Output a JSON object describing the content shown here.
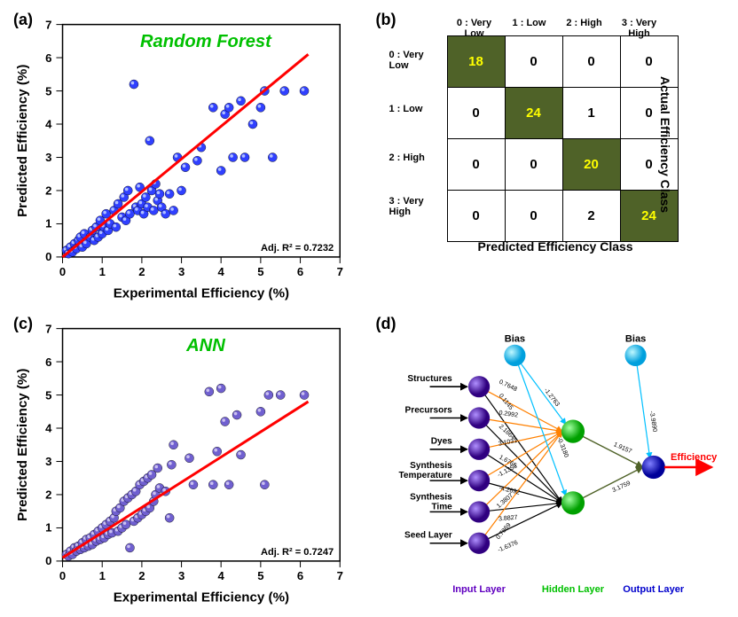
{
  "panel_a": {
    "label": "(a)",
    "title": "Random Forest",
    "title_color": "#00c000",
    "xlabel": "Experimental Efficiency (%)",
    "ylabel": "Predicted Efficiency (%)",
    "r2_label": "Adj. R² = 0.7232",
    "xlim": [
      0,
      7
    ],
    "ylim": [
      0,
      7
    ],
    "ticks": [
      0,
      1,
      2,
      3,
      4,
      5,
      6,
      7
    ],
    "marker_fill": "#3040ff",
    "marker_highlight": "#b0bfff",
    "line_color": "#ff0000",
    "fit_line": [
      [
        0,
        0
      ],
      [
        6.2,
        6.1
      ]
    ],
    "points": [
      [
        0.1,
        0.2
      ],
      [
        0.15,
        0.1
      ],
      [
        0.2,
        0.3
      ],
      [
        0.25,
        0.15
      ],
      [
        0.3,
        0.4
      ],
      [
        0.35,
        0.25
      ],
      [
        0.4,
        0.5
      ],
      [
        0.45,
        0.6
      ],
      [
        0.5,
        0.3
      ],
      [
        0.55,
        0.7
      ],
      [
        0.6,
        0.4
      ],
      [
        0.7,
        0.6
      ],
      [
        0.75,
        0.8
      ],
      [
        0.8,
        0.5
      ],
      [
        0.85,
        0.9
      ],
      [
        0.9,
        0.6
      ],
      [
        0.95,
        1.1
      ],
      [
        1.0,
        0.7
      ],
      [
        1.05,
        0.9
      ],
      [
        1.1,
        1.3
      ],
      [
        1.15,
        0.8
      ],
      [
        1.2,
        1.0
      ],
      [
        1.3,
        1.4
      ],
      [
        1.35,
        0.9
      ],
      [
        1.4,
        1.6
      ],
      [
        1.5,
        1.2
      ],
      [
        1.55,
        1.8
      ],
      [
        1.6,
        1.1
      ],
      [
        1.65,
        2.0
      ],
      [
        1.7,
        1.3
      ],
      [
        1.8,
        5.2
      ],
      [
        1.85,
        1.5
      ],
      [
        1.9,
        1.4
      ],
      [
        1.95,
        2.1
      ],
      [
        2.0,
        1.6
      ],
      [
        2.05,
        1.3
      ],
      [
        2.1,
        1.8
      ],
      [
        2.15,
        1.5
      ],
      [
        2.2,
        3.5
      ],
      [
        2.25,
        2.0
      ],
      [
        2.3,
        1.4
      ],
      [
        2.35,
        2.2
      ],
      [
        2.4,
        1.7
      ],
      [
        2.45,
        1.9
      ],
      [
        2.5,
        1.5
      ],
      [
        2.6,
        1.3
      ],
      [
        2.7,
        1.9
      ],
      [
        2.8,
        1.4
      ],
      [
        2.9,
        3.0
      ],
      [
        3.0,
        2.0
      ],
      [
        3.1,
        2.7
      ],
      [
        3.4,
        2.9
      ],
      [
        3.5,
        3.3
      ],
      [
        3.8,
        4.5
      ],
      [
        4.0,
        2.6
      ],
      [
        4.1,
        4.3
      ],
      [
        4.2,
        4.5
      ],
      [
        4.3,
        3.0
      ],
      [
        4.5,
        4.7
      ],
      [
        4.6,
        3.0
      ],
      [
        4.8,
        4.0
      ],
      [
        5.0,
        4.5
      ],
      [
        5.1,
        5.0
      ],
      [
        5.3,
        3.0
      ],
      [
        5.6,
        5.0
      ],
      [
        6.1,
        5.0
      ]
    ]
  },
  "panel_b": {
    "label": "(b)",
    "col_headers": [
      "0 : Very Low",
      "1 : Low",
      "2 : High",
      "3 : Very High"
    ],
    "row_headers": [
      "0 : Very\nLow",
      "1 : Low",
      "2 : High",
      "3 : Very\nHigh"
    ],
    "xlabel": "Predicted Efficiency Class",
    "ylabel": "Actual Efficiency Class",
    "cells": [
      [
        "18",
        "0",
        "0",
        "0"
      ],
      [
        "0",
        "24",
        "1",
        "0"
      ],
      [
        "0",
        "0",
        "20",
        "0"
      ],
      [
        "0",
        "0",
        "2",
        "24"
      ]
    ],
    "diag_bg": "#4f6228",
    "diag_fg": "#ffff00"
  },
  "panel_c": {
    "label": "(c)",
    "title": "ANN",
    "title_color": "#00c000",
    "xlabel": "Experimental Efficiency (%)",
    "ylabel": "Predicted Efficiency (%)",
    "r2_label": "Adj. R² = 0.7247",
    "xlim": [
      0,
      7
    ],
    "ylim": [
      0,
      7
    ],
    "ticks": [
      0,
      1,
      2,
      3,
      4,
      5,
      6,
      7
    ],
    "marker_fill": "#7060d0",
    "marker_highlight": "#cac0f0",
    "line_color": "#ff0000",
    "fit_line": [
      [
        0,
        0.1
      ],
      [
        6.2,
        4.8
      ]
    ],
    "points": [
      [
        0.1,
        0.2
      ],
      [
        0.15,
        0.15
      ],
      [
        0.2,
        0.3
      ],
      [
        0.25,
        0.2
      ],
      [
        0.3,
        0.4
      ],
      [
        0.35,
        0.3
      ],
      [
        0.4,
        0.45
      ],
      [
        0.45,
        0.35
      ],
      [
        0.5,
        0.55
      ],
      [
        0.55,
        0.4
      ],
      [
        0.6,
        0.65
      ],
      [
        0.65,
        0.45
      ],
      [
        0.7,
        0.7
      ],
      [
        0.75,
        0.5
      ],
      [
        0.8,
        0.8
      ],
      [
        0.85,
        0.6
      ],
      [
        0.9,
        0.9
      ],
      [
        0.95,
        0.65
      ],
      [
        1.0,
        1.0
      ],
      [
        1.05,
        0.7
      ],
      [
        1.1,
        1.1
      ],
      [
        1.15,
        0.8
      ],
      [
        1.2,
        1.2
      ],
      [
        1.25,
        0.85
      ],
      [
        1.3,
        1.3
      ],
      [
        1.35,
        1.5
      ],
      [
        1.4,
        0.9
      ],
      [
        1.45,
        1.6
      ],
      [
        1.5,
        1.0
      ],
      [
        1.55,
        1.8
      ],
      [
        1.6,
        1.1
      ],
      [
        1.65,
        1.9
      ],
      [
        1.7,
        0.4
      ],
      [
        1.75,
        2.0
      ],
      [
        1.8,
        1.2
      ],
      [
        1.85,
        2.1
      ],
      [
        1.9,
        1.3
      ],
      [
        1.95,
        2.3
      ],
      [
        2.0,
        1.4
      ],
      [
        2.05,
        2.4
      ],
      [
        2.1,
        1.5
      ],
      [
        2.15,
        2.5
      ],
      [
        2.2,
        1.6
      ],
      [
        2.25,
        2.6
      ],
      [
        2.3,
        1.8
      ],
      [
        2.35,
        2.0
      ],
      [
        2.4,
        2.8
      ],
      [
        2.45,
        2.2
      ],
      [
        2.6,
        2.1
      ],
      [
        2.7,
        1.3
      ],
      [
        2.75,
        2.9
      ],
      [
        2.8,
        3.5
      ],
      [
        3.2,
        3.1
      ],
      [
        3.3,
        2.3
      ],
      [
        3.7,
        5.1
      ],
      [
        3.8,
        2.3
      ],
      [
        3.9,
        3.3
      ],
      [
        4.0,
        5.2
      ],
      [
        4.1,
        4.2
      ],
      [
        4.2,
        2.3
      ],
      [
        4.4,
        4.4
      ],
      [
        4.5,
        3.2
      ],
      [
        5.0,
        4.5
      ],
      [
        5.1,
        2.3
      ],
      [
        5.2,
        5.0
      ],
      [
        5.5,
        5.0
      ],
      [
        6.1,
        5.0
      ]
    ]
  },
  "panel_d": {
    "label": "(d)",
    "input_labels": [
      "Structures",
      "Precursors",
      "Dyes",
      "Synthesis\nTemperature",
      "Synthesis\nTime",
      "Seed Layer"
    ],
    "bias_label": "Bias",
    "output_label": "Efficiency",
    "output_color": "#ff0000",
    "layer_labels": {
      "input": "Input Layer",
      "hidden": "Hidden Layer",
      "output": "Output Layer"
    },
    "layer_colors": {
      "input": "#6000c0",
      "hidden": "#00c000",
      "output": "#0000cc",
      "bias": "#00c0ff"
    },
    "node_fill": {
      "input": "#4000a0",
      "hidden": "#00e000",
      "output": "#0000cc",
      "bias": "#00d0ff"
    },
    "weights_in_h1": [
      "0.7648",
      "0.2992",
      "3.1031",
      "-1.1353",
      "1.3807",
      "0.7869"
    ],
    "weights_in_h2": [
      "0.1145",
      "2.1664",
      "1.6765",
      "-4.2692",
      "3.8827",
      "-1.6376"
    ],
    "weight_bias_h1": "-1.2763",
    "weight_bias_h2": "-0.3180",
    "weight_h1_out": "1.9157",
    "weight_h2_out": "3.1759",
    "weight_bias_out": "-3.9890",
    "edge_colors": {
      "to_h1": "#ff8000",
      "to_h2": "#000000",
      "bias": "#00c0ff",
      "hidden_out": "#4f6228"
    }
  }
}
